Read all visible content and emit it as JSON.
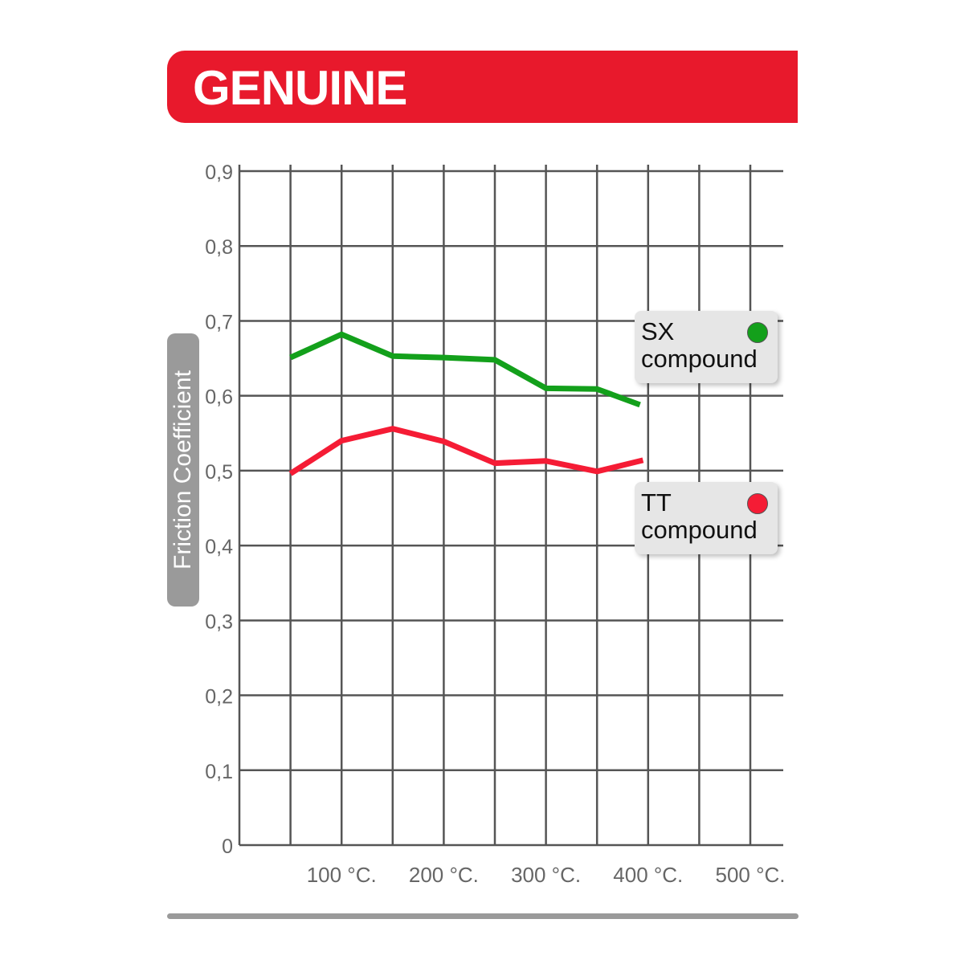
{
  "header": {
    "title": "GENUINE",
    "color": "#e8192c"
  },
  "chart_data": {
    "type": "line",
    "title": "",
    "xlabel": "",
    "ylabel": "Friction Coefficient",
    "xlim": [
      0,
      550
    ],
    "ylim": [
      0,
      0.9
    ],
    "grid": true,
    "x_ticks": [
      100,
      200,
      300,
      400,
      500
    ],
    "x_tick_labels": [
      "100 °C.",
      "200 °C.",
      "300 °C.",
      "400 °C.",
      "500 °C."
    ],
    "y_ticks": [
      0,
      0.1,
      0.2,
      0.3,
      0.4,
      0.5,
      0.6,
      0.7,
      0.8,
      0.9
    ],
    "y_tick_labels": [
      "0",
      "0,1",
      "0,2",
      "0,3",
      "0,4",
      "0,5",
      "0,6",
      "0,7",
      "0,8",
      "0,9"
    ],
    "legend_placement": "right",
    "series": [
      {
        "name": "SX",
        "sub": "compound",
        "color": "#13a01b",
        "x": [
          50,
          100,
          150,
          200,
          250,
          300,
          350,
          392
        ],
        "y": [
          0.651,
          0.682,
          0.653,
          0.651,
          0.648,
          0.61,
          0.609,
          0.588
        ]
      },
      {
        "name": "TT",
        "sub": "compound",
        "color": "#f51c35",
        "x": [
          50,
          100,
          150,
          200,
          250,
          300,
          350,
          395
        ],
        "y": [
          0.496,
          0.54,
          0.556,
          0.539,
          0.51,
          0.513,
          0.499,
          0.514
        ]
      }
    ]
  }
}
